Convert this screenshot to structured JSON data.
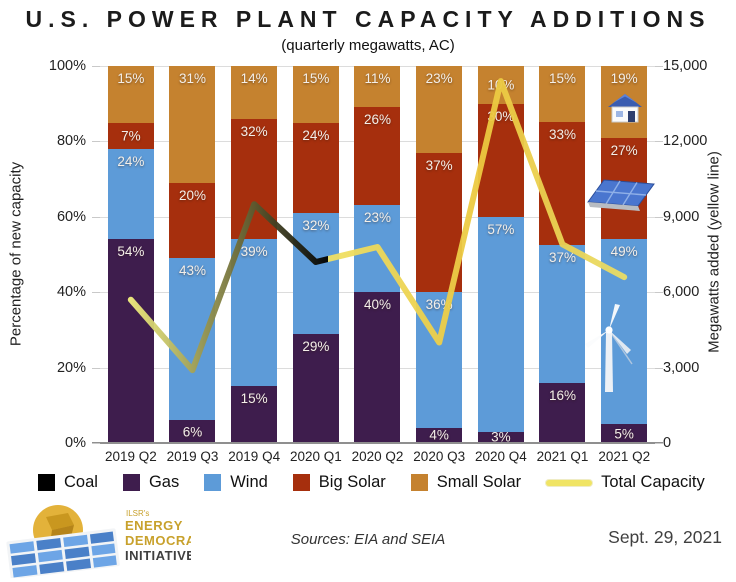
{
  "header": {
    "title": "U.S. POWER PLANT CAPACITY ADDITIONS",
    "subtitle": "(quarterly megawatts, AC)"
  },
  "chart_data": {
    "type": "bar",
    "subtype": "stacked-percent-with-line",
    "categories": [
      "2019 Q2",
      "2019 Q3",
      "2019 Q4",
      "2020 Q1",
      "2020 Q2",
      "2020 Q3",
      "2020 Q4",
      "2021 Q1",
      "2021 Q2"
    ],
    "series": [
      {
        "name": "Coal",
        "color": "#000000",
        "values": [
          0,
          0,
          0,
          0,
          0,
          0,
          0,
          0,
          0
        ]
      },
      {
        "name": "Gas",
        "color": "#3e1d4d",
        "values": [
          54,
          6,
          15,
          29,
          40,
          4,
          3,
          16,
          5
        ]
      },
      {
        "name": "Wind",
        "color": "#5d9bd8",
        "values": [
          24,
          43,
          39,
          32,
          23,
          36,
          57,
          37,
          49
        ]
      },
      {
        "name": "Big Solar",
        "color": "#a62f0d",
        "values": [
          7,
          20,
          32,
          24,
          26,
          37,
          30,
          33,
          27
        ]
      },
      {
        "name": "Small Solar",
        "color": "#c5822f",
        "values": [
          15,
          31,
          14,
          15,
          11,
          23,
          10,
          15,
          19
        ]
      }
    ],
    "line_series": {
      "name": "Total Capacity",
      "color": "#eedd5c",
      "values_mw": [
        5700,
        2900,
        9500,
        7200,
        7800,
        4000,
        14400,
        7900,
        6600
      ]
    },
    "left_axis": {
      "label": "Percentage of new capacity",
      "ticks": [
        "0%",
        "20%",
        "40%",
        "60%",
        "80%",
        "100%"
      ],
      "min": 0,
      "max": 100
    },
    "right_axis": {
      "label": "Megawatts added (yellow line)",
      "ticks": [
        "0",
        "3,000",
        "6,000",
        "9,000",
        "12,000",
        "15,000"
      ],
      "min": 0,
      "max": 15000
    },
    "grid": true,
    "legend_position": "bottom",
    "value_suffix": "%"
  },
  "legend": {
    "line_item_label": "Total Capacity"
  },
  "icons": {
    "small_solar": "house-icon",
    "big_solar": "solar-panel-icon",
    "wind": "wind-turbine-icon",
    "logo": "solar-panel-grid-icon"
  },
  "footer": {
    "org_prefix": "ILSR's",
    "org_line1": "ENERGY",
    "org_line2": "DEMOCRACY",
    "org_line3": "INITIATIVE",
    "sources": "Sources: EIA and SEIA",
    "date": "Sept. 29, 2021"
  }
}
